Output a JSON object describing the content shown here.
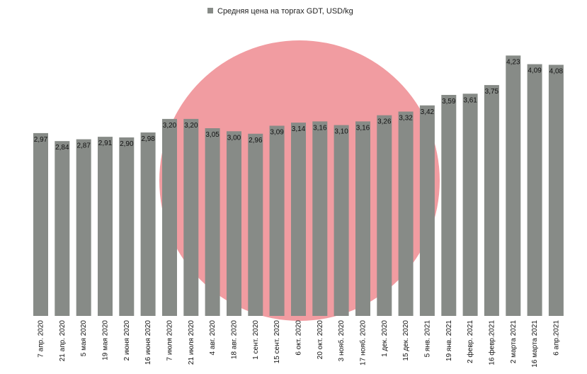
{
  "colors": {
    "bar": "#878b87",
    "watermark": "#f19ca1",
    "background": "#ffffff"
  },
  "chart_data": {
    "type": "bar",
    "legend": {
      "position": "top-center",
      "entries": [
        "Средняя цена на торгах GDT,  USD/kg"
      ]
    },
    "categories": [
      "7 апр. 2020",
      "21 апр. 2020",
      "5 мая 2020",
      "19 мая 2020",
      "2 июня 2020",
      "16 июня 2020",
      "7 июля 2020",
      "21 июля 2020",
      "4 авг. 2020",
      "18 авг. 2020",
      "1 сент. 2020",
      "15 сент. 2020",
      "6 окт. 2020",
      "20 окт. 2020",
      "3 нояб. 2020",
      "17 нояб. 2020",
      "1 дек. 2020",
      "15 дек. 2020",
      "5 янв. 2021",
      "19 янв. 2021",
      "2 февр. 2021",
      "16 февр.2021",
      "2 марта 2021",
      "16 марта 2021",
      "6 апр.2021"
    ],
    "series": [
      {
        "name": "Средняя цена на торгах GDT,  USD/kg",
        "values": [
          2.97,
          2.84,
          2.87,
          2.91,
          2.9,
          2.98,
          3.2,
          3.2,
          3.05,
          3.0,
          2.96,
          3.09,
          3.14,
          3.16,
          3.1,
          3.16,
          3.26,
          3.32,
          3.42,
          3.59,
          3.61,
          3.75,
          4.23,
          4.09,
          4.08
        ],
        "labels": [
          "2,97",
          "2,84",
          "2,87",
          "2,91",
          "2,90",
          "2,98",
          "3,20",
          "3,20",
          "3,05",
          "3,00",
          "2,96",
          "3,09",
          "3,14",
          "3,16",
          "3,10",
          "3,16",
          "3,26",
          "3,32",
          "3,42",
          "3,59",
          "3,61",
          "3,75",
          "4,23",
          "4,09",
          "4,08"
        ]
      }
    ],
    "ylim": [
      0,
      4.35
    ],
    "grid": false,
    "y_axis_visible": false
  }
}
